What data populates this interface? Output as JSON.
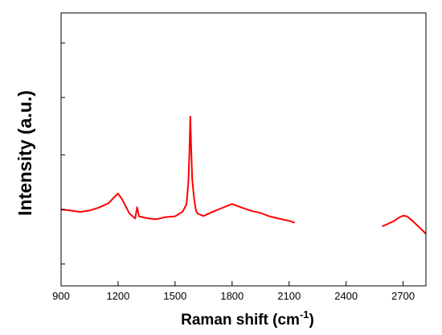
{
  "chart_data": {
    "type": "line",
    "xlabel": "Raman shift (cm",
    "xlabel_superscript": "-1",
    "xlabel_suffix": ")",
    "ylabel": "Intensity (a.u.)",
    "xlim": [
      900,
      2820
    ],
    "ylim": [
      0,
      1
    ],
    "x_ticks": [
      900,
      1200,
      1500,
      1800,
      2100,
      2400,
      2700
    ],
    "y_tick_labels_shown": false,
    "y_ticks": [
      0.08,
      0.28,
      0.48,
      0.69,
      0.89
    ],
    "grid": false,
    "legend": "none",
    "series": [
      {
        "color": "#ff0000",
        "segments": [
          {
            "x": [
              900,
              950,
              1000,
              1050,
              1100,
              1150,
              1180,
              1200,
              1220,
              1260,
              1290,
              1300,
              1310,
              1360,
              1400,
              1450,
              1500,
              1540,
              1560,
              1570,
              1575,
              1580,
              1585,
              1590,
              1600,
              1610,
              1620,
              1650,
              1700,
              1750,
              1800,
              1850,
              1900,
              1950,
              2000,
              2050,
              2100,
              2130
            ],
            "y": [
              0.28,
              0.276,
              0.271,
              0.276,
              0.287,
              0.303,
              0.325,
              0.338,
              0.318,
              0.265,
              0.247,
              0.288,
              0.255,
              0.247,
              0.244,
              0.252,
              0.255,
              0.272,
              0.299,
              0.38,
              0.48,
              0.62,
              0.495,
              0.39,
              0.32,
              0.275,
              0.264,
              0.256,
              0.272,
              0.286,
              0.3,
              0.287,
              0.275,
              0.267,
              0.254,
              0.246,
              0.238,
              0.232
            ]
          },
          {
            "x": [
              2590,
              2620,
              2650,
              2680,
              2700,
              2720,
              2750,
              2780,
              2810,
              2820
            ],
            "y": [
              0.218,
              0.227,
              0.237,
              0.251,
              0.257,
              0.255,
              0.238,
              0.218,
              0.198,
              0.19
            ]
          }
        ]
      }
    ]
  }
}
